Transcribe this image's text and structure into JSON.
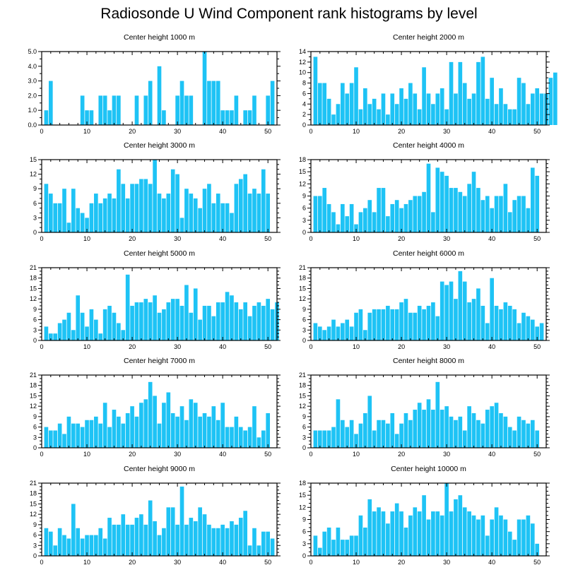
{
  "title": "Radiosonde U Wind Component rank histograms by level",
  "colors": {
    "bar": "#1ec3f5",
    "axis": "#000000"
  },
  "chart_data": [
    {
      "type": "bar",
      "title": "Center height 1000 m",
      "xlabel": "",
      "ylabel": "",
      "xlim": [
        0,
        52
      ],
      "xticks": [
        0,
        10,
        20,
        30,
        40,
        50
      ],
      "ylim": [
        0,
        5
      ],
      "yticks": [
        0,
        1,
        2,
        3,
        4,
        5
      ],
      "ytick_labels": [
        "0.0",
        "1.0",
        "2.0",
        "3.0",
        "4.0",
        "5.0"
      ],
      "values": [
        1,
        3,
        0,
        0,
        0,
        0,
        0,
        0,
        2,
        1,
        1,
        0,
        2,
        2,
        1,
        2,
        2,
        0,
        0,
        0,
        2,
        0,
        2,
        3,
        0,
        4,
        1,
        0,
        0,
        2,
        3,
        2,
        2,
        0,
        0,
        5,
        3,
        3,
        3,
        1,
        1,
        1,
        2,
        0,
        1,
        1,
        2,
        0,
        0,
        2,
        3
      ]
    },
    {
      "type": "bar",
      "title": "Center height 2000 m",
      "xlabel": "",
      "ylabel": "",
      "xlim": [
        0,
        52
      ],
      "xticks": [
        0,
        10,
        20,
        30,
        40,
        50
      ],
      "ylim": [
        0,
        14
      ],
      "yticks": [
        0,
        2,
        4,
        6,
        8,
        10,
        12,
        14
      ],
      "ytick_labels": [
        "0",
        "2",
        "4",
        "6",
        "8",
        "10",
        "12",
        "14"
      ],
      "values": [
        13,
        8,
        8,
        5,
        2,
        4,
        8,
        6,
        8,
        11,
        3,
        7,
        4,
        5,
        3,
        6,
        2,
        6,
        4,
        7,
        5,
        8,
        6,
        3,
        11,
        6,
        4,
        6,
        7,
        3,
        12,
        6,
        12,
        8,
        5,
        6,
        12,
        13,
        5,
        9,
        4,
        7,
        4,
        3,
        3,
        9,
        8,
        4,
        6,
        7,
        6,
        6,
        9,
        10
      ]
    },
    {
      "type": "bar",
      "title": "Center height 3000 m",
      "xlabel": "",
      "ylabel": "",
      "xlim": [
        0,
        52
      ],
      "xticks": [
        0,
        10,
        20,
        30,
        40,
        50
      ],
      "ylim": [
        0,
        15
      ],
      "yticks": [
        0,
        3,
        6,
        9,
        12,
        15
      ],
      "ytick_labels": [
        "0",
        "3",
        "6",
        "9",
        "12",
        "15"
      ],
      "values": [
        10,
        8,
        6,
        6,
        9,
        2,
        9,
        5,
        4,
        3,
        6,
        8,
        6,
        7,
        8,
        7,
        13,
        10,
        7,
        10,
        10,
        11,
        11,
        10,
        15,
        8,
        7,
        8,
        13,
        12,
        3,
        9,
        8,
        7,
        5,
        9,
        10,
        6,
        8,
        6,
        6,
        4,
        10,
        11,
        12,
        8,
        9,
        8,
        13,
        8
      ]
    },
    {
      "type": "bar",
      "title": "Center height 4000 m",
      "xlabel": "",
      "ylabel": "",
      "xlim": [
        0,
        52
      ],
      "xticks": [
        0,
        10,
        20,
        30,
        40,
        50
      ],
      "ylim": [
        0,
        18
      ],
      "yticks": [
        0,
        3,
        6,
        9,
        12,
        15,
        18
      ],
      "ytick_labels": [
        "0",
        "3",
        "6",
        "9",
        "12",
        "15",
        "18"
      ],
      "values": [
        9,
        9,
        11,
        7,
        5,
        2,
        7,
        4,
        7,
        2,
        5,
        6,
        8,
        5,
        11,
        11,
        4,
        7,
        8,
        6,
        7,
        8,
        9,
        9,
        10,
        17,
        5,
        16,
        15,
        14,
        11,
        11,
        10,
        9,
        12,
        15,
        11,
        8,
        9,
        6,
        9,
        9,
        12,
        5,
        8,
        9,
        9,
        6,
        16,
        14
      ]
    },
    {
      "type": "bar",
      "title": "Center height 5000 m",
      "xlabel": "",
      "ylabel": "",
      "xlim": [
        0,
        52
      ],
      "xticks": [
        0,
        10,
        20,
        30,
        40,
        50
      ],
      "ylim": [
        0,
        21
      ],
      "yticks": [
        0,
        3,
        6,
        9,
        12,
        15,
        18,
        21
      ],
      "ytick_labels": [
        "0",
        "3",
        "6",
        "9",
        "12",
        "15",
        "18",
        "21"
      ],
      "values": [
        4,
        2,
        2,
        5,
        6,
        8,
        3,
        13,
        8,
        4,
        9,
        6,
        2,
        9,
        10,
        8,
        5,
        3,
        19,
        10,
        11,
        11,
        12,
        11,
        13,
        8,
        9,
        11,
        12,
        12,
        10,
        16,
        8,
        15,
        6,
        10,
        10,
        7,
        11,
        11,
        14,
        13,
        11,
        9,
        11,
        7,
        10,
        11,
        10,
        12,
        9,
        11
      ]
    },
    {
      "type": "bar",
      "title": "Center height 6000 m",
      "xlabel": "",
      "ylabel": "",
      "xlim": [
        0,
        52
      ],
      "xticks": [
        0,
        10,
        20,
        30,
        40,
        50
      ],
      "ylim": [
        0,
        21
      ],
      "yticks": [
        0,
        3,
        6,
        9,
        12,
        15,
        18,
        21
      ],
      "ytick_labels": [
        "0",
        "3",
        "6",
        "9",
        "12",
        "15",
        "18",
        "21"
      ],
      "values": [
        5,
        4,
        3,
        4,
        6,
        4,
        5,
        6,
        4,
        8,
        9,
        3,
        8,
        9,
        9,
        9,
        10,
        9,
        9,
        11,
        12,
        8,
        8,
        10,
        9,
        10,
        11,
        7,
        17,
        16,
        17,
        12,
        20,
        17,
        11,
        12,
        15,
        10,
        5,
        18,
        10,
        9,
        11,
        10,
        9,
        5,
        8,
        7,
        6,
        4,
        5
      ]
    },
    {
      "type": "bar",
      "title": "Center height 7000 m",
      "xlabel": "",
      "ylabel": "",
      "xlim": [
        0,
        52
      ],
      "xticks": [
        0,
        10,
        20,
        30,
        40,
        50
      ],
      "ylim": [
        0,
        21
      ],
      "yticks": [
        0,
        3,
        6,
        9,
        12,
        15,
        18,
        21
      ],
      "ytick_labels": [
        "0",
        "3",
        "6",
        "9",
        "12",
        "15",
        "18",
        "21"
      ],
      "values": [
        6,
        5,
        5,
        7,
        4,
        9,
        7,
        7,
        6,
        8,
        8,
        9,
        7,
        13,
        6,
        11,
        9,
        7,
        10,
        12,
        9,
        13,
        14,
        19,
        15,
        7,
        13,
        16,
        10,
        9,
        12,
        8,
        14,
        13,
        9,
        10,
        9,
        12,
        8,
        13,
        6,
        6,
        9,
        6,
        5,
        6,
        12,
        3,
        5,
        10
      ]
    },
    {
      "type": "bar",
      "title": "Center height 8000 m",
      "xlabel": "",
      "ylabel": "",
      "xlim": [
        0,
        52
      ],
      "xticks": [
        0,
        10,
        20,
        30,
        40,
        50
      ],
      "ylim": [
        0,
        21
      ],
      "yticks": [
        0,
        3,
        6,
        9,
        12,
        15,
        18,
        21
      ],
      "ytick_labels": [
        "0",
        "3",
        "6",
        "9",
        "12",
        "15",
        "18",
        "21"
      ],
      "values": [
        5,
        5,
        5,
        5,
        6,
        14,
        8,
        6,
        8,
        4,
        7,
        10,
        15,
        5,
        8,
        8,
        7,
        10,
        4,
        7,
        10,
        8,
        11,
        13,
        11,
        14,
        11,
        19,
        11,
        12,
        9,
        8,
        9,
        5,
        12,
        10,
        8,
        7,
        11,
        12,
        13,
        10,
        9,
        6,
        5,
        9,
        8,
        7,
        8,
        5
      ]
    },
    {
      "type": "bar",
      "title": "Center height 9000 m",
      "xlabel": "",
      "ylabel": "",
      "xlim": [
        0,
        52
      ],
      "xticks": [
        0,
        10,
        20,
        30,
        40,
        50
      ],
      "ylim": [
        0,
        21
      ],
      "yticks": [
        0,
        3,
        6,
        9,
        12,
        15,
        18,
        21
      ],
      "ytick_labels": [
        "0",
        "3",
        "6",
        "9",
        "12",
        "15",
        "18",
        "21"
      ],
      "values": [
        8,
        7,
        3,
        8,
        6,
        5,
        15,
        8,
        5,
        6,
        6,
        6,
        8,
        5,
        11,
        9,
        9,
        12,
        9,
        9,
        11,
        12,
        9,
        16,
        10,
        6,
        8,
        14,
        14,
        9,
        20,
        9,
        11,
        10,
        14,
        12,
        9,
        8,
        8,
        9,
        8,
        10,
        9,
        11,
        13,
        3,
        8,
        3,
        7,
        7,
        5
      ]
    },
    {
      "type": "bar",
      "title": "Center height 10000 m",
      "xlabel": "",
      "ylabel": "",
      "xlim": [
        0,
        52
      ],
      "xticks": [
        0,
        10,
        20,
        30,
        40,
        50
      ],
      "ylim": [
        0,
        18
      ],
      "yticks": [
        0,
        3,
        6,
        9,
        12,
        15,
        18
      ],
      "ytick_labels": [
        "0",
        "3",
        "6",
        "9",
        "12",
        "15",
        "18"
      ],
      "values": [
        5,
        2,
        6,
        7,
        4,
        7,
        4,
        4,
        5,
        5,
        10,
        7,
        14,
        11,
        12,
        11,
        8,
        11,
        13,
        11,
        7,
        10,
        12,
        11,
        15,
        9,
        11,
        11,
        10,
        18,
        11,
        14,
        15,
        12,
        11,
        10,
        9,
        10,
        5,
        9,
        12,
        10,
        9,
        6,
        4,
        9,
        9,
        10,
        8,
        3
      ]
    }
  ]
}
